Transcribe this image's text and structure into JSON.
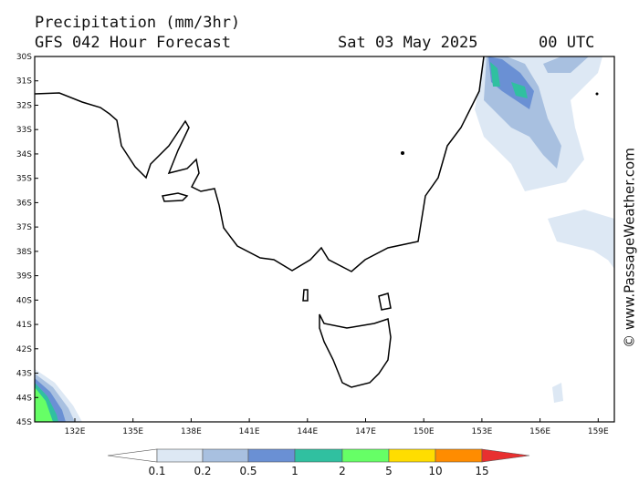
{
  "header": {
    "title": "Precipitation (mm/3hr)",
    "model": "GFS 042 Hour Forecast",
    "date": "Sat 03 May 2025",
    "time": "00 UTC"
  },
  "map": {
    "lat_labels": [
      "30S",
      "31S",
      "32S",
      "33S",
      "34S",
      "35S",
      "36S",
      "37S",
      "38S",
      "39S",
      "40S",
      "41S",
      "42S",
      "43S",
      "44S",
      "45S"
    ],
    "lon_labels": [
      "132E",
      "135E",
      "138E",
      "141E",
      "144E",
      "147E",
      "150E",
      "153E",
      "156E",
      "159E"
    ]
  },
  "legend": {
    "labels": [
      "0.1",
      "0.2",
      "0.5",
      "1",
      "2",
      "5",
      "10",
      "15"
    ]
  },
  "credit": "© www.PassageWeather.com"
}
